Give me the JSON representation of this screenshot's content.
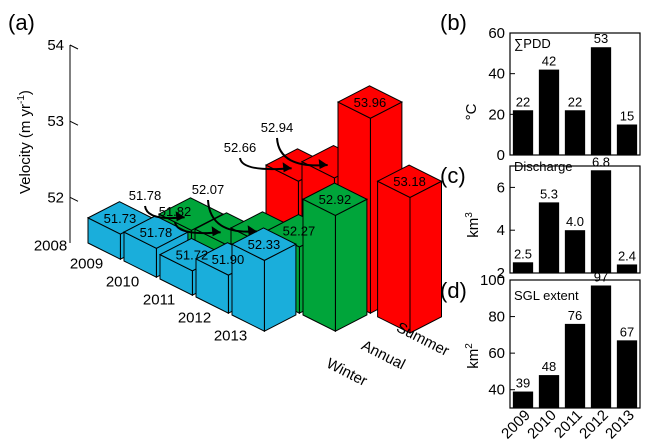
{
  "colors": {
    "summer": "#ff0000",
    "annual": "#00a53a",
    "winter": "#1aaedb",
    "bar": "#000000"
  },
  "chart_data": [
    {
      "panel": "(a)",
      "type": "bar",
      "subtype": "3d-bar",
      "ylabel": "Velocity (m yr",
      "ylabel_sup": "-1",
      "ylabel_close": ")",
      "ylim": [
        51.4,
        54
      ],
      "yticks": [
        "51.4",
        "52",
        "53",
        "54"
      ],
      "ytick_labels": [
        "52",
        "53",
        "54"
      ],
      "categories": [
        "2008",
        "2009",
        "2010",
        "2011",
        "2012",
        "2013"
      ],
      "series": [
        {
          "name": "Summer",
          "values": [
            null,
            null,
            null,
            52.66,
            52.94,
            53.96
          ]
        },
        {
          "name": "Annual",
          "values": [
            null,
            51.78,
            51.82,
            52.07,
            52.27,
            52.92
          ]
        },
        {
          "name": "Winter",
          "values": [
            51.73,
            51.78,
            51.72,
            51.9,
            52.33,
            null
          ]
        }
      ],
      "summer_annual_value": 53.18,
      "labels": {
        "summer": [
          "",
          "",
          "",
          "52.66",
          "52.94",
          "53.96"
        ],
        "annual": [
          "",
          "51.78",
          "51.82",
          "52.07",
          "52.27",
          "52.92"
        ],
        "winter": [
          "51.73",
          "51.78",
          "51.72",
          "51.90",
          "52.33",
          ""
        ],
        "summer_annual": "53.18"
      }
    },
    {
      "panel": "(b)",
      "type": "bar",
      "title": "∑PDD",
      "ylabel": "°C",
      "ylim": [
        0,
        60
      ],
      "yticks": [
        "0",
        "20",
        "40",
        "60"
      ],
      "categories": [
        "2009",
        "2010",
        "2011",
        "2012",
        "2013"
      ],
      "values": [
        22,
        42,
        22,
        53,
        15
      ],
      "value_labels": [
        "22",
        "42",
        "22",
        "53",
        "15"
      ]
    },
    {
      "panel": "(c)",
      "type": "bar",
      "title": "Discharge",
      "ylabel": "km",
      "ylabel_sup": "3",
      "ylim": [
        2,
        7
      ],
      "yticks": [
        "2",
        "4",
        "6"
      ],
      "categories": [
        "2009",
        "2010",
        "2011",
        "2012",
        "2013"
      ],
      "values": [
        2.5,
        5.3,
        4.0,
        6.8,
        2.4
      ],
      "value_labels": [
        "2.5",
        "5.3",
        "4.0",
        "6.8",
        "2.4"
      ]
    },
    {
      "panel": "(d)",
      "type": "bar",
      "title": "SGL extent",
      "ylabel": "km",
      "ylabel_sup": "2",
      "ylim": [
        30,
        100
      ],
      "yticks": [
        "40",
        "60",
        "80",
        "100"
      ],
      "categories": [
        "2009",
        "2010",
        "2011",
        "2012",
        "2013"
      ],
      "values": [
        39,
        48,
        76,
        97,
        67
      ],
      "value_labels": [
        "39",
        "48",
        "76",
        "97",
        "67"
      ]
    }
  ]
}
